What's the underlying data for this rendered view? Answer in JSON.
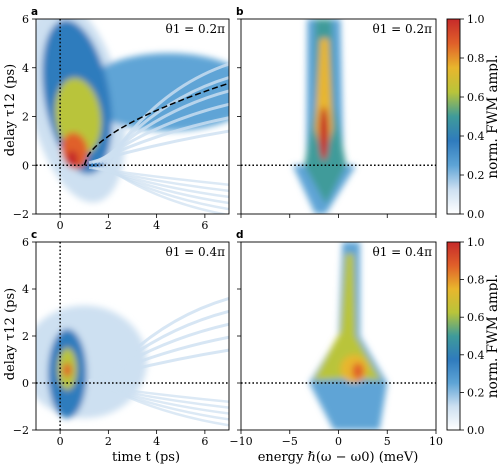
{
  "chart_data": [
    {
      "panel": "a",
      "type": "heatmap",
      "xlabel": "",
      "ylabel": "delay τ12 (ps)",
      "xlim": [
        -1,
        7
      ],
      "ylim": [
        -2,
        6
      ],
      "xticks": [
        "0",
        "2",
        "4",
        "6"
      ],
      "yticks": [
        "−2",
        "0",
        "2",
        "4",
        "6"
      ],
      "annotation": "θ1 = 0.2π",
      "guides": {
        "vertical_dotted_x": 0,
        "horizontal_dotted_y": 0,
        "dashed_curve": "delay ≈ 3.3·((t−1)/5.8)^0.58, t from 1 to 7"
      },
      "peak": {
        "t": 0.6,
        "delay": 0.3,
        "value": 1.0
      },
      "features": "bright crescent peaking near t≈0.6 ps, τ≈0.3 ps, broad yellow band up to τ≈3 ps, fringes for t>1 ps"
    },
    {
      "panel": "b",
      "type": "heatmap",
      "xlabel": "",
      "ylabel": "",
      "xlim": [
        -10,
        10
      ],
      "ylim": [
        -2,
        6
      ],
      "xticks": [],
      "yticks": [],
      "annotation": "θ1 = 0.2π",
      "guides": {
        "horizontal_dotted_y": 0
      },
      "peak": {
        "energy": -1.5,
        "delay": 1.0,
        "value": 1.0
      },
      "features": "narrow spectral line at ≈−1.5 meV, broadening toward τ=0"
    },
    {
      "panel": "c",
      "type": "heatmap",
      "xlabel": "time t (ps)",
      "ylabel": "delay τ12 (ps)",
      "xlim": [
        -1,
        7
      ],
      "ylim": [
        -2,
        6
      ],
      "xticks": [
        "0",
        "2",
        "4",
        "6"
      ],
      "yticks": [
        "−2",
        "0",
        "2",
        "4",
        "6"
      ],
      "annotation": "θ1 = 0.4π",
      "guides": {
        "vertical_dotted_x": 0,
        "horizontal_dotted_y": 0
      },
      "peak": {
        "t": 0.3,
        "delay": 0.5,
        "value": 0.9
      },
      "features": "small bright spot near t≈0.3 ps, τ≈0.5 ps, faint fringes"
    },
    {
      "panel": "d",
      "type": "heatmap",
      "xlabel": "energy ℏ(ω − ω0) (meV)",
      "ylabel": "",
      "xlim": [
        -10,
        10
      ],
      "ylim": [
        -2,
        6
      ],
      "xticks": [
        "−10",
        "−5",
        "0",
        "5",
        "10"
      ],
      "yticks": [],
      "annotation": "θ1 = 0.4π",
      "guides": {
        "horizontal_dotted_y": 0
      },
      "peak": {
        "energy": 2.0,
        "delay": 0.5,
        "value": 1.0
      },
      "features": "line at ≈1 meV splitting below τ≈2 ps, bright lobe near 2 meV"
    }
  ],
  "colorbars": [
    {
      "label": "norm. FWM ampl.",
      "range": [
        0.0,
        1.0
      ],
      "ticks": [
        "0.0",
        "0.2",
        "0.4",
        "0.6",
        "0.8",
        "1.0"
      ]
    },
    {
      "label": "norm. FWM ampl.",
      "range": [
        0.0,
        1.0
      ],
      "ticks": [
        "0.0",
        "0.2",
        "0.4",
        "0.6",
        "0.8",
        "1.0"
      ]
    }
  ],
  "colormap": [
    "#ffffff",
    "#cde0f1",
    "#5ea4d6",
    "#2f7bbd",
    "#3f9b9a",
    "#b9c43a",
    "#e8b62d",
    "#e0602a",
    "#c62a2a"
  ]
}
